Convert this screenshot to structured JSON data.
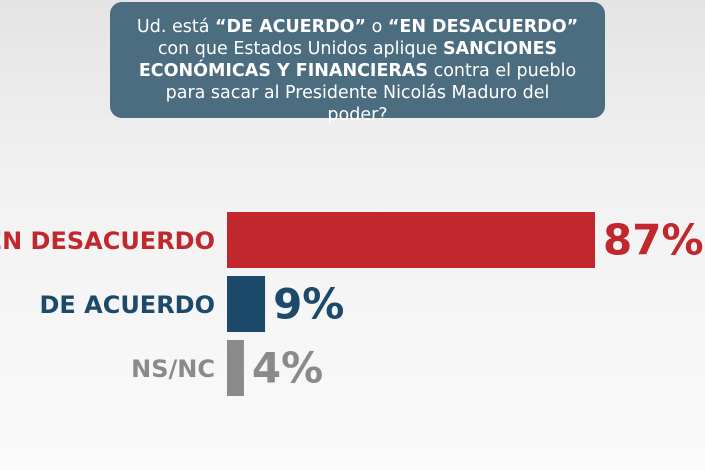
{
  "chart_data": {
    "type": "bar",
    "orientation": "horizontal",
    "title": [
      {
        "text": "Ud. está ",
        "bold": false
      },
      {
        "text": "“DE ACUERDO”",
        "bold": true
      },
      {
        "text": " o ",
        "bold": false
      },
      {
        "text": "“EN DESACUERDO”",
        "bold": true
      },
      {
        "text": " con que Estados Unidos aplique ",
        "bold": false
      },
      {
        "text": "SANCIONES ECONÓMICAS Y FINANCIERAS",
        "bold": true
      },
      {
        "text": " contra el pueblo para sacar al Presidente Nicolás Maduro del poder?",
        "bold": false
      }
    ],
    "categories": [
      "EN DESACUERDO",
      "DE ACUERDO",
      "NS/NC"
    ],
    "values": [
      87,
      9,
      4
    ],
    "value_labels": [
      "87%",
      "9%",
      "4%"
    ],
    "colors": [
      "#c1272d",
      "#1c4a6b",
      "#8a8a8a"
    ],
    "xlim": [
      0,
      100
    ]
  }
}
